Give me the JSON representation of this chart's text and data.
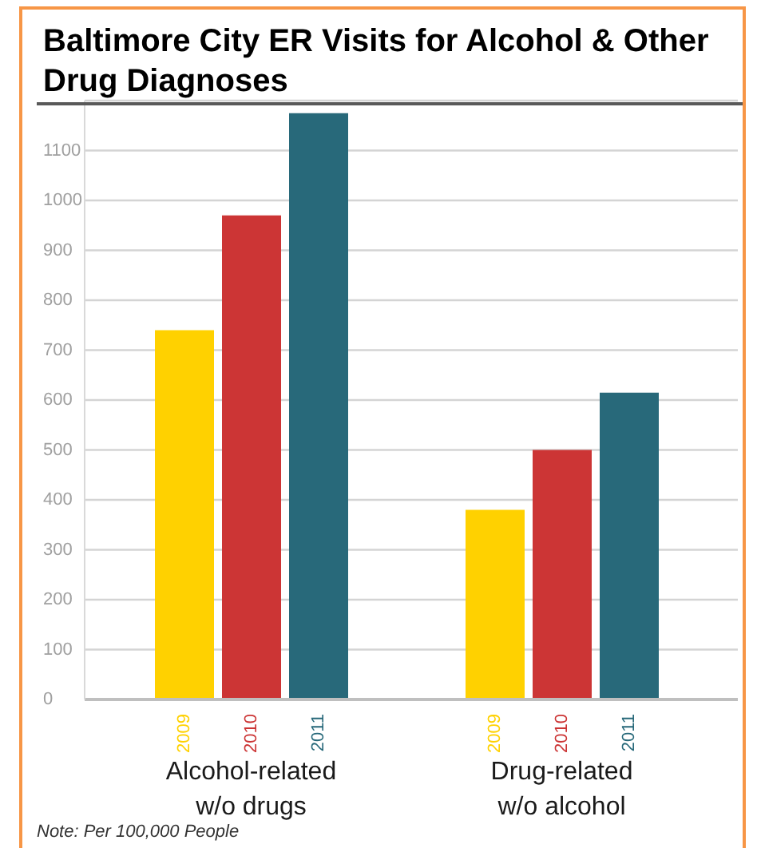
{
  "chart_data": {
    "type": "bar",
    "title": "Baltimore City ER Visits for Alcohol & Other Drug Diagnoses",
    "categories": [
      "Alcohol-related w/o drugs",
      "Drug-related w/o alcohol"
    ],
    "series": [
      {
        "name": "2009",
        "color": "#ffd100",
        "values": [
          740,
          380
        ]
      },
      {
        "name": "2010",
        "color": "#cc3535",
        "values": [
          970,
          500
        ]
      },
      {
        "name": "2011",
        "color": "#28697a",
        "values": [
          1175,
          615
        ]
      }
    ],
    "ylim": [
      0,
      1200
    ],
    "yticks": [
      0,
      100,
      200,
      300,
      400,
      500,
      600,
      700,
      800,
      900,
      1000,
      1100
    ],
    "grid": "y",
    "annotations": [
      "Note: Per 100,000 People"
    ]
  }
}
